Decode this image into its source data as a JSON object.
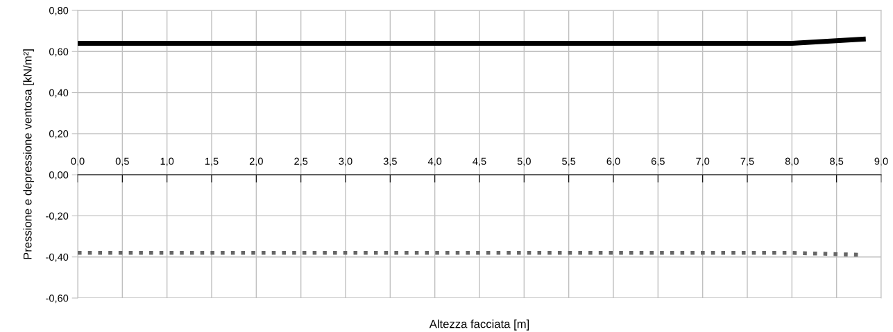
{
  "chart_data": {
    "type": "line",
    "xlabel": "Altezza facciata [m]",
    "ylabel": "Pressione e depressione ventosa [kN/m²]",
    "x": [
      0,
      8.0,
      8.8
    ],
    "series": [
      {
        "color": "#000000",
        "values": [
          0.64,
          0.64,
          0.66
        ],
        "line_style": "solid"
      },
      {
        "color": "#666666",
        "values": [
          -0.38,
          -0.38,
          -0.39
        ],
        "line_style": "dotted"
      }
    ],
    "xlim": [
      0,
      9
    ],
    "xticks": [
      {
        "value": 0,
        "label": "0,0"
      },
      {
        "value": 0.5,
        "label": "0,5"
      },
      {
        "value": 1,
        "label": "1,0"
      },
      {
        "value": 1.5,
        "label": "1,5"
      },
      {
        "value": 2,
        "label": "2,0"
      },
      {
        "value": 2.5,
        "label": "2,5"
      },
      {
        "value": 3,
        "label": "3,0"
      },
      {
        "value": 3.5,
        "label": "3,5"
      },
      {
        "value": 4,
        "label": "4,0"
      },
      {
        "value": 4.5,
        "label": "4,5"
      },
      {
        "value": 5,
        "label": "5,0"
      },
      {
        "value": 5.5,
        "label": "5,5"
      },
      {
        "value": 6,
        "label": "6,0"
      },
      {
        "value": 6.5,
        "label": "6,5"
      },
      {
        "value": 7,
        "label": "7,0"
      },
      {
        "value": 7.5,
        "label": "7,5"
      },
      {
        "value": 8,
        "label": "8,0"
      },
      {
        "value": 8.5,
        "label": "8,5"
      },
      {
        "value": 9,
        "label": "9,0"
      }
    ],
    "ylim": [
      -0.6,
      0.8
    ],
    "yticks": [
      {
        "value": -0.6,
        "label": "-0,60"
      },
      {
        "value": -0.4,
        "label": "-0,40"
      },
      {
        "value": -0.2,
        "label": "-0,20"
      },
      {
        "value": 0,
        "label": "0,00"
      },
      {
        "value": 0.2,
        "label": "0,20"
      },
      {
        "value": 0.4,
        "label": "0,40"
      },
      {
        "value": 0.6,
        "label": "0,60"
      },
      {
        "value": 0.8,
        "label": "0,80"
      }
    ],
    "grid": true,
    "marker": "none"
  }
}
